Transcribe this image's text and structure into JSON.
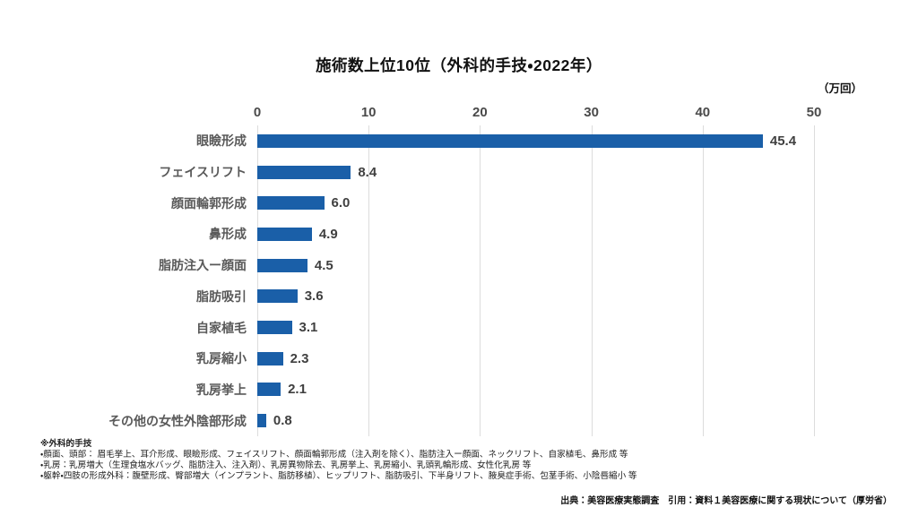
{
  "title": "施術数上位10位（外科的手技・2022年）",
  "unit_label": "（万回）",
  "chart_data": {
    "type": "bar",
    "orientation": "horizontal",
    "title": "施術数上位10位（外科的手技・2022年）",
    "xlabel": "（万回）",
    "ylabel": "",
    "categories": [
      "眼瞼形成",
      "フェイスリフト",
      "顔面輪郭形成",
      "鼻形成",
      "脂肪注入ー顔面",
      "脂肪吸引",
      "自家植毛",
      "乳房縮小",
      "乳房挙上",
      "その他の女性外陰部形成"
    ],
    "values": [
      45.4,
      8.4,
      6.0,
      4.9,
      4.5,
      3.6,
      3.1,
      2.3,
      2.1,
      0.8
    ],
    "value_labels": [
      "45.4",
      "8.4",
      "6.0",
      "4.9",
      "4.5",
      "3.6",
      "3.1",
      "2.3",
      "2.1",
      "0.8"
    ],
    "xlim": [
      0,
      50
    ],
    "xticks": [
      0,
      10,
      20,
      30,
      40,
      50
    ],
    "grid": true,
    "legend": "none",
    "bar_color": "#1A5FA8"
  },
  "colors": {
    "bar": "#1A5FA8",
    "gridline": "#DCDCDC",
    "tick_text": "#4A4A4A",
    "category_text": "#595959",
    "value_text": "#404040"
  },
  "footnotes": {
    "heading": "※外科的手技",
    "lines": [
      "・顔面、頭部： 眉毛挙上、耳介形成、眼瞼形成、フェイスリフト、顔面輪郭形成（注入剤を除く）、脂肪注入ー顔面、ネックリフト、自家植毛、鼻形成 等",
      "・乳房：乳房増大（生理食塩水バッグ、脂肪注入、注入剤）、乳房異物除去、乳房挙上、乳房縮小、乳頭乳輪形成、女性化乳房 等",
      "・躯幹・四肢の形成外科：腹壁形成、臀部増大（インプラント、脂肪移植）、ヒップリフト、脂肪吸引、下半身リフト、腋臭症手術、包茎手術、小陰唇縮小 等"
    ]
  },
  "source": "出典：美容医療実態調査　引用：資料１美容医療に関する現状について（厚労省）"
}
